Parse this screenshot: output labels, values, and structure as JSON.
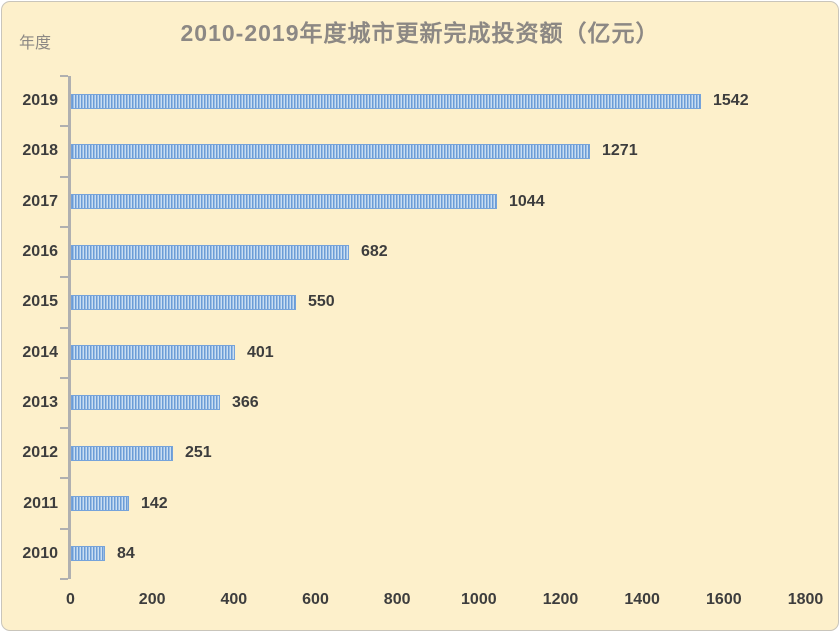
{
  "window": {
    "background": "#fdf0cb",
    "border_color": "#c9c5bb"
  },
  "chart_data": {
    "type": "bar",
    "orientation": "horizontal",
    "title": "2010-2019年度城市更新完成投资额（亿元）",
    "ylabel": "年度",
    "xlabel": "",
    "categories": [
      "2019",
      "2018",
      "2017",
      "2016",
      "2015",
      "2014",
      "2013",
      "2012",
      "2011",
      "2010"
    ],
    "values": [
      1542,
      1271,
      1044,
      682,
      550,
      401,
      366,
      251,
      142,
      84
    ],
    "x_ticks": [
      "0",
      "200",
      "400",
      "600",
      "800",
      "1000",
      "1200",
      "1400",
      "1600",
      "1800"
    ],
    "xlim": [
      0,
      1800
    ],
    "grid": false,
    "legend": false,
    "value_labels": true,
    "bar_pattern": "vertical-stripes",
    "colors": {
      "background": "#fdf0cb",
      "bar_stripe_dark": "#6b9cd6",
      "bar_stripe_light": "#cadef2",
      "bar_border": "#76a3da",
      "axis_line": "#b0b0b0",
      "title": "#8c8884",
      "ylabel": "#8c8884",
      "labels": "#3d3d3d"
    }
  }
}
